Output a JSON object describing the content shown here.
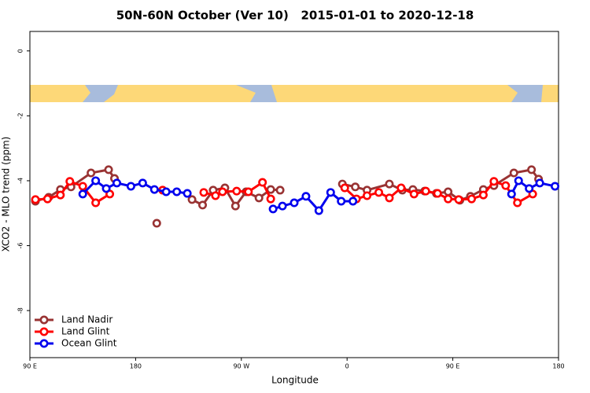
{
  "chart_data": {
    "type": "line",
    "title": "50N-60N October (Ver 10)   2015-01-01 to 2020-12-18",
    "x_label": "Longitude",
    "y_label": "XCO2 - MLO trend (ppm)",
    "xlim": [
      90,
      540
    ],
    "xticks": [
      {
        "value": 90,
        "label": "90 E"
      },
      {
        "value": 180,
        "label": "180"
      },
      {
        "value": 270,
        "label": "90 W"
      },
      {
        "value": 360,
        "label": "0"
      },
      {
        "value": 450,
        "label": "90 E"
      },
      {
        "value": 540,
        "label": "180"
      }
    ],
    "ylim": [
      -9.45,
      0.6
    ],
    "yticks": [
      0,
      -2,
      -4,
      -6,
      -8
    ],
    "legend": "bottom-left",
    "series": [
      {
        "name": "Land Nadir",
        "color": "#993333",
        "x": [
          94.7,
          106,
          116,
          125,
          142,
          157,
          162,
          null,
          198,
          null,
          228,
          237,
          246,
          256,
          265,
          274,
          285,
          295,
          303,
          null,
          356,
          367,
          377,
          396,
          407,
          416,
          426,
          436,
          446,
          456,
          465,
          476,
          485,
          502,
          517,
          523
        ],
        "values": [
          -4.63,
          -4.51,
          -4.27,
          -4.19,
          -3.76,
          -3.66,
          -3.93,
          null,
          -5.31,
          null,
          -4.58,
          -4.75,
          -4.29,
          -4.22,
          -4.78,
          -4.34,
          -4.53,
          -4.27,
          -4.29,
          null,
          -4.1,
          -4.19,
          -4.29,
          -4.1,
          -4.29,
          -4.27,
          -4.32,
          -4.39,
          -4.34,
          -4.6,
          -4.48,
          -4.27,
          -4.15,
          -3.76,
          -3.66,
          -3.95
        ]
      },
      {
        "name": "Land Glint",
        "color": "#ff0000",
        "x": [
          94.7,
          105,
          116,
          124,
          135,
          146,
          158,
          null,
          203,
          null,
          238,
          248,
          254,
          266,
          276,
          288,
          295,
          null,
          358,
          368,
          377,
          387,
          396,
          406,
          417,
          427,
          437,
          446,
          455,
          466,
          476,
          485,
          495,
          505,
          518
        ],
        "values": [
          -4.58,
          -4.56,
          -4.44,
          -4.02,
          -4.17,
          -4.68,
          -4.41,
          null,
          -4.29,
          null,
          -4.36,
          -4.46,
          -4.34,
          -4.32,
          -4.34,
          -4.05,
          -4.56,
          null,
          -4.22,
          -4.56,
          -4.46,
          -4.36,
          -4.53,
          -4.22,
          -4.41,
          -4.32,
          -4.39,
          -4.56,
          -4.58,
          -4.56,
          -4.44,
          -4.02,
          -4.15,
          -4.68,
          -4.41
        ]
      },
      {
        "name": "Ocean Glint",
        "color": "#0000ee",
        "x": [
          135,
          146,
          155,
          164,
          176,
          186,
          196,
          206,
          215,
          224,
          null,
          297,
          305,
          315,
          325,
          336,
          346,
          355,
          365,
          null,
          500,
          506,
          515,
          524,
          537
        ],
        "values": [
          -4.41,
          -4.0,
          -4.24,
          -4.07,
          -4.17,
          -4.07,
          -4.27,
          -4.34,
          -4.34,
          -4.39,
          null,
          -4.87,
          -4.78,
          -4.68,
          -4.48,
          -4.92,
          -4.36,
          -4.63,
          -4.63,
          null,
          -4.41,
          -4.0,
          -4.24,
          -4.07,
          -4.17
        ]
      }
    ]
  }
}
